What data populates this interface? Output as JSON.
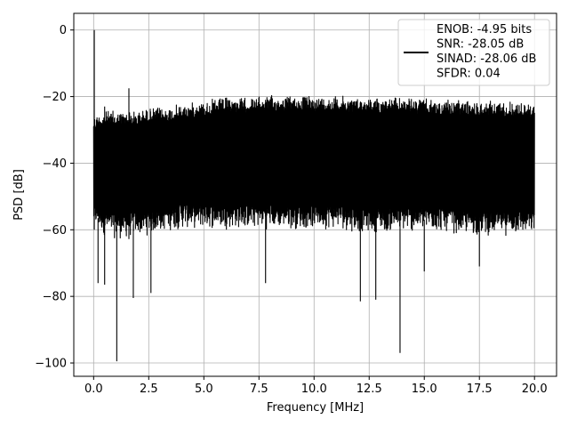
{
  "chart_data": {
    "type": "line",
    "title": "",
    "xlabel": "Frequency [MHz]",
    "ylabel": "PSD [dB]",
    "xlim": [
      -0.9,
      21.0
    ],
    "ylim": [
      -104,
      5
    ],
    "x_ticks": [
      0.0,
      2.5,
      5.0,
      7.5,
      10.0,
      12.5,
      15.0,
      17.5,
      20.0
    ],
    "x_tick_labels": [
      "0.0",
      "2.5",
      "5.0",
      "7.5",
      "10.0",
      "12.5",
      "15.0",
      "17.5",
      "20.0"
    ],
    "y_ticks": [
      0,
      -20,
      -40,
      -60,
      -80,
      -100
    ],
    "y_tick_labels": [
      "0",
      "−20",
      "−40",
      "−60",
      "−80",
      "−100"
    ],
    "grid": true,
    "legend_position": "top-right",
    "series": [
      {
        "color": "#000000",
        "x_range": [
          0.0,
          20.0
        ],
        "envelope": {
          "x": [
            0.0,
            0.1,
            0.5,
            1.0,
            1.5,
            2.0,
            2.5,
            3.0,
            4.0,
            5.0,
            6.0,
            7.0,
            8.0,
            9.0,
            10.0,
            11.0,
            12.0,
            13.0,
            14.0,
            15.0,
            16.0,
            17.0,
            18.0,
            19.0,
            20.0
          ],
          "upper_db": [
            -25,
            -25,
            -24,
            -24,
            -24,
            -24,
            -23,
            -23,
            -22,
            -21,
            -20,
            -20,
            -19.5,
            -19.5,
            -19.5,
            -19.5,
            -20,
            -20,
            -20,
            -20.5,
            -21,
            -21,
            -21,
            -21,
            -22
          ],
          "lower_db": [
            -60,
            -60,
            -62,
            -63,
            -63,
            -62,
            -62,
            -61,
            -60,
            -60,
            -60,
            -60,
            -60,
            -60,
            -60,
            -60,
            -61,
            -61,
            -61,
            -61,
            -61,
            -62,
            -62,
            -62,
            -62
          ]
        },
        "peaks": [
          {
            "x": 0.03,
            "y": 0.0
          },
          {
            "x": 1.6,
            "y": -17.5
          },
          {
            "x": 0.5,
            "y": -23
          }
        ],
        "dips": [
          {
            "x": 1.05,
            "y": -99.5
          },
          {
            "x": 13.9,
            "y": -97.0
          },
          {
            "x": 12.1,
            "y": -81.5
          },
          {
            "x": 12.8,
            "y": -81.0
          },
          {
            "x": 1.8,
            "y": -80.5
          },
          {
            "x": 2.6,
            "y": -79.0
          },
          {
            "x": 7.8,
            "y": -76.0
          },
          {
            "x": 0.5,
            "y": -76.5
          },
          {
            "x": 0.2,
            "y": -76.0
          },
          {
            "x": 15.0,
            "y": -72.5
          },
          {
            "x": 17.5,
            "y": -71.0
          }
        ]
      }
    ],
    "legend": {
      "lines": [
        "ENOB: -4.95 bits",
        "SNR: -28.05 dB",
        "SINAD: -28.06 dB",
        "SFDR: 0.04"
      ]
    }
  }
}
